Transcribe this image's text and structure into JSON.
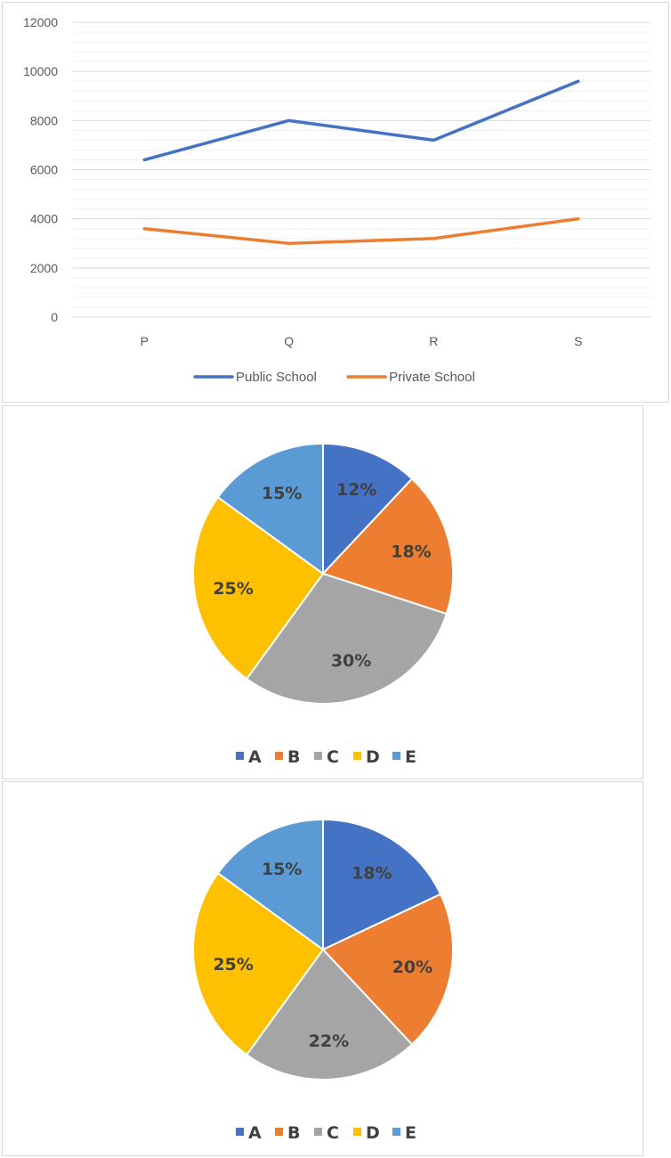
{
  "chart_data": [
    {
      "type": "line",
      "categories": [
        "P",
        "Q",
        "R",
        "S"
      ],
      "series": [
        {
          "name": "Public School",
          "values": [
            6400,
            8000,
            7200,
            9600
          ],
          "color": "#4472c4"
        },
        {
          "name": "Private School",
          "values": [
            3600,
            3000,
            3200,
            4000
          ],
          "color": "#ed7d31"
        }
      ],
      "ylim": [
        0,
        12000
      ],
      "yticks": [
        0,
        2000,
        4000,
        6000,
        8000,
        10000,
        12000
      ],
      "grid": true,
      "legend_position": "bottom"
    },
    {
      "type": "pie",
      "slices": [
        {
          "label": "A",
          "value": 12,
          "text": "12%",
          "color": "#4472c4"
        },
        {
          "label": "B",
          "value": 18,
          "text": "18%",
          "color": "#ed7d31"
        },
        {
          "label": "C",
          "value": 30,
          "text": "30%",
          "color": "#a5a5a5"
        },
        {
          "label": "D",
          "value": 25,
          "text": "25%",
          "color": "#ffc000"
        },
        {
          "label": "E",
          "value": 15,
          "text": "15%",
          "color": "#5b9bd5"
        }
      ],
      "legend_position": "bottom"
    },
    {
      "type": "pie",
      "slices": [
        {
          "label": "A",
          "value": 18,
          "text": "18%",
          "color": "#4472c4"
        },
        {
          "label": "B",
          "value": 20,
          "text": "20%",
          "color": "#ed7d31"
        },
        {
          "label": "C",
          "value": 22,
          "text": "22%",
          "color": "#a5a5a5"
        },
        {
          "label": "D",
          "value": 25,
          "text": "25%",
          "color": "#ffc000"
        },
        {
          "label": "E",
          "value": 15,
          "text": "15%",
          "color": "#5b9bd5"
        }
      ],
      "legend_position": "bottom"
    }
  ]
}
